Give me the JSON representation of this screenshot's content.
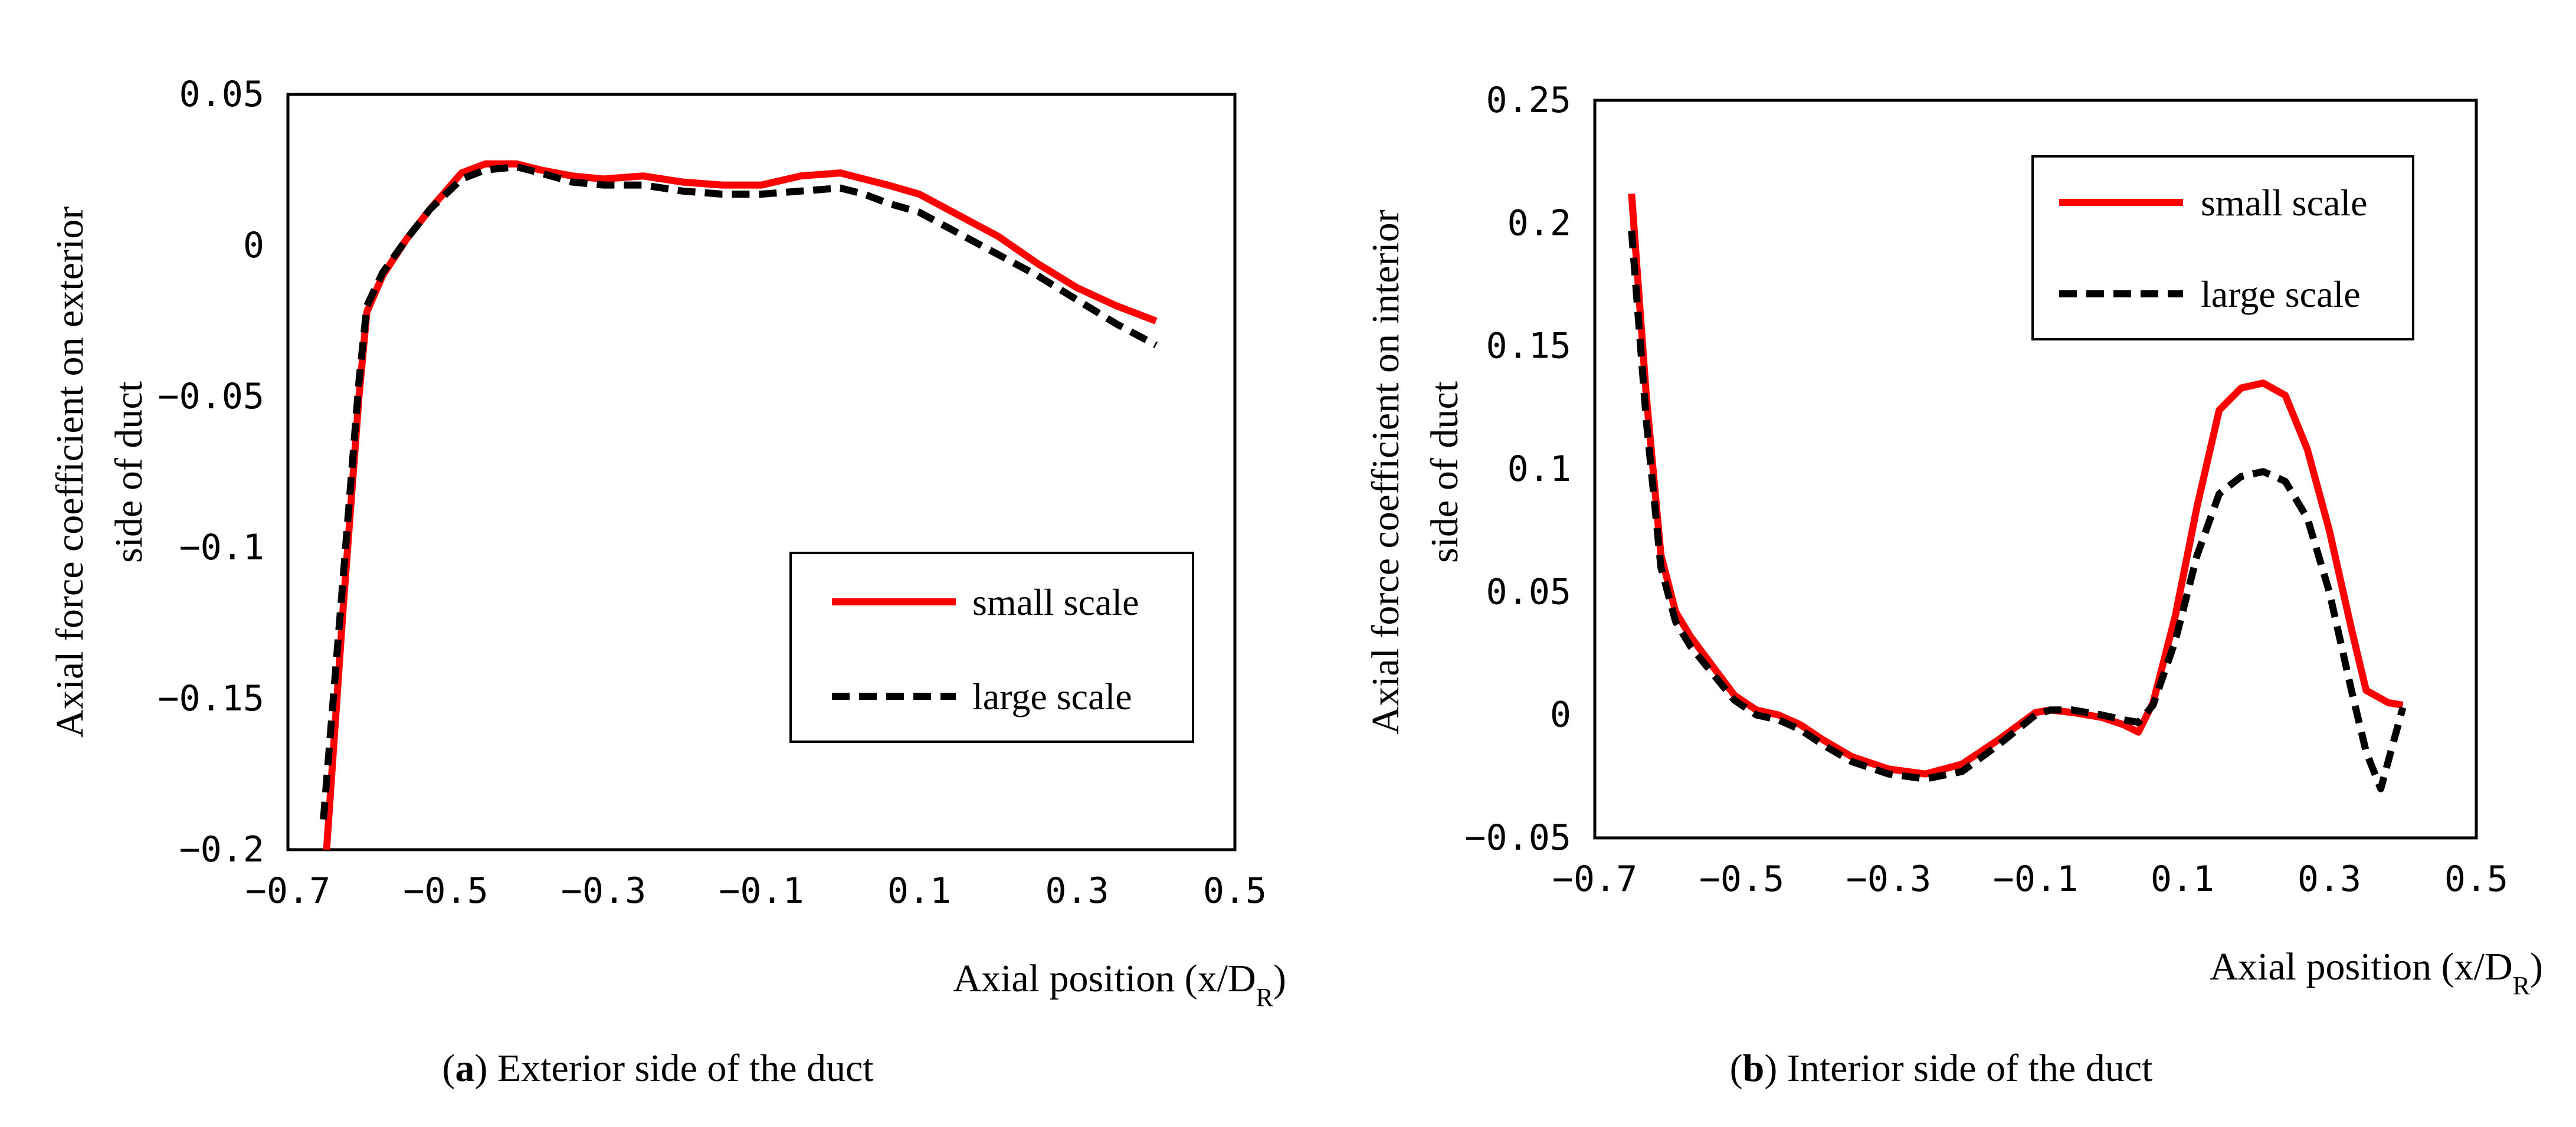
{
  "chart_data": [
    {
      "type": "line",
      "caption_letter": "a",
      "caption_text": " Exterior side of the duct",
      "xlabel_main": "Axial position (x/D",
      "xlabel_sub": "R",
      "xlabel_end": ")",
      "ylabel_line1": "Axial force coefficient on exterior",
      "ylabel_line2": "side of duct",
      "xlim": [
        -0.7,
        0.5
      ],
      "ylim": [
        -0.2,
        0.05
      ],
      "xticks": [
        "−0.7",
        "−0.5",
        "−0.3",
        "−0.1",
        "0.1",
        "0.3",
        "0.5"
      ],
      "xtick_values": [
        -0.7,
        -0.5,
        -0.3,
        -0.1,
        0.1,
        0.3,
        0.5
      ],
      "yticks": [
        "0.05",
        "0",
        "−0.05",
        "−0.1",
        "−0.15",
        "−0.2"
      ],
      "ytick_values": [
        0.05,
        0,
        -0.05,
        -0.1,
        -0.15,
        -0.2
      ],
      "grid": false,
      "legend_position": "lower-right",
      "series": [
        {
          "name": "small scale",
          "color": "#ff0000",
          "dash": "solid",
          "x": [
            -0.651,
            -0.63,
            -0.61,
            -0.6,
            -0.58,
            -0.55,
            -0.52,
            -0.48,
            -0.45,
            -0.41,
            -0.38,
            -0.34,
            -0.3,
            -0.25,
            -0.2,
            -0.15,
            -0.1,
            -0.05,
            0.0,
            0.03,
            0.06,
            0.1,
            0.15,
            0.2,
            0.25,
            0.3,
            0.35,
            0.4
          ],
          "y": [
            -0.2,
            -0.12,
            -0.05,
            -0.022,
            -0.01,
            0.002,
            0.012,
            0.024,
            0.027,
            0.027,
            0.025,
            0.023,
            0.022,
            0.023,
            0.021,
            0.02,
            0.02,
            0.023,
            0.024,
            0.022,
            0.02,
            0.017,
            0.01,
            0.003,
            -0.006,
            -0.014,
            -0.02,
            -0.025
          ]
        },
        {
          "name": "large scale",
          "color": "#000000",
          "dash": "dashed",
          "x": [
            -0.655,
            -0.63,
            -0.61,
            -0.6,
            -0.58,
            -0.55,
            -0.52,
            -0.48,
            -0.45,
            -0.41,
            -0.38,
            -0.34,
            -0.3,
            -0.25,
            -0.2,
            -0.15,
            -0.1,
            -0.05,
            0.0,
            0.03,
            0.06,
            0.1,
            0.15,
            0.2,
            0.25,
            0.3,
            0.35,
            0.4
          ],
          "y": [
            -0.19,
            -0.11,
            -0.045,
            -0.02,
            -0.009,
            0.002,
            0.012,
            0.022,
            0.025,
            0.026,
            0.024,
            0.021,
            0.02,
            0.02,
            0.018,
            0.017,
            0.017,
            0.018,
            0.019,
            0.017,
            0.014,
            0.011,
            0.004,
            -0.003,
            -0.01,
            -0.018,
            -0.026,
            -0.033
          ]
        }
      ]
    },
    {
      "type": "line",
      "caption_letter": "b",
      "caption_text": " Interior side of the duct",
      "xlabel_main": "Axial position (x/D",
      "xlabel_sub": "R",
      "xlabel_end": ")",
      "ylabel_line1": "Axial force coefficient on interior",
      "ylabel_line2": "side of duct",
      "xlim": [
        -0.7,
        0.5
      ],
      "ylim": [
        -0.05,
        0.25
      ],
      "xticks": [
        "−0.7",
        "−0.5",
        "−0.3",
        "−0.1",
        "0.1",
        "0.3",
        "0.5"
      ],
      "xtick_values": [
        -0.7,
        -0.5,
        -0.3,
        -0.1,
        0.1,
        0.3,
        0.5
      ],
      "yticks": [
        "0.25",
        "0.2",
        "0.15",
        "0.1",
        "0.05",
        "0",
        "−0.05"
      ],
      "ytick_values": [
        0.25,
        0.2,
        0.15,
        0.1,
        0.05,
        0,
        -0.05
      ],
      "grid": false,
      "legend_position": "upper-right",
      "series": [
        {
          "name": "small scale",
          "color": "#ff0000",
          "dash": "solid",
          "x": [
            -0.65,
            -0.63,
            -0.61,
            -0.59,
            -0.57,
            -0.54,
            -0.51,
            -0.48,
            -0.45,
            -0.42,
            -0.39,
            -0.35,
            -0.3,
            -0.25,
            -0.2,
            -0.15,
            -0.1,
            -0.08,
            -0.05,
            -0.01,
            0.02,
            0.04,
            0.06,
            0.09,
            0.12,
            0.15,
            0.18,
            0.21,
            0.24,
            0.27,
            0.3,
            0.33,
            0.35,
            0.38,
            0.4
          ],
          "y": [
            0.212,
            0.13,
            0.065,
            0.042,
            0.032,
            0.02,
            0.008,
            0.002,
            0.0,
            -0.004,
            -0.01,
            -0.017,
            -0.022,
            -0.024,
            -0.02,
            -0.01,
            0.001,
            0.002,
            0.001,
            -0.001,
            -0.004,
            -0.007,
            0.005,
            0.04,
            0.085,
            0.124,
            0.133,
            0.135,
            0.13,
            0.108,
            0.075,
            0.035,
            0.01,
            0.005,
            0.004
          ]
        },
        {
          "name": "large scale",
          "color": "#000000",
          "dash": "dashed",
          "x": [
            -0.65,
            -0.63,
            -0.61,
            -0.59,
            -0.57,
            -0.54,
            -0.51,
            -0.48,
            -0.45,
            -0.42,
            -0.39,
            -0.35,
            -0.3,
            -0.25,
            -0.2,
            -0.15,
            -0.1,
            -0.08,
            -0.05,
            -0.01,
            0.02,
            0.04,
            0.06,
            0.09,
            0.12,
            0.15,
            0.18,
            0.21,
            0.24,
            0.27,
            0.3,
            0.33,
            0.35,
            0.37,
            0.4
          ],
          "y": [
            0.197,
            0.12,
            0.06,
            0.038,
            0.028,
            0.017,
            0.006,
            0.0,
            -0.002,
            -0.006,
            -0.012,
            -0.019,
            -0.024,
            -0.026,
            -0.023,
            -0.012,
            0.0,
            0.002,
            0.002,
            0.0,
            -0.002,
            -0.003,
            0.004,
            0.03,
            0.065,
            0.09,
            0.097,
            0.099,
            0.095,
            0.08,
            0.05,
            0.01,
            -0.015,
            -0.03,
            0.003
          ]
        }
      ]
    }
  ]
}
